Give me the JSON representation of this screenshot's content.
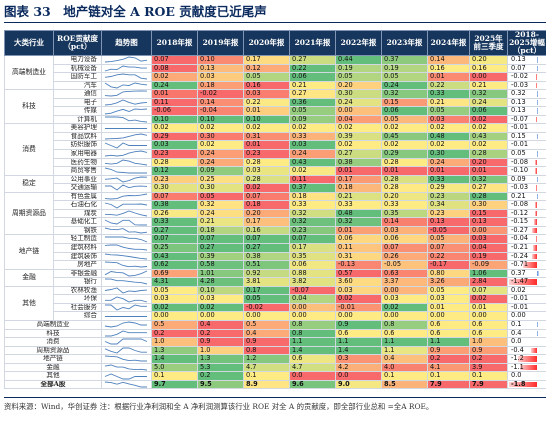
{
  "title": "图表 33　地产链对全 A ROE 贡献度已近尾声",
  "headers": [
    "大类行业",
    "ROE贡献度（pct）",
    "趋势图",
    "2018年报",
    "2019年报",
    "2020年报",
    "2021年报",
    "2022年报",
    "2023年报",
    "2024年报",
    "2025年前三季度",
    "2018-2025增幅（pct）"
  ],
  "groups": [
    {
      "name": "高端制造业",
      "rows": [
        {
          "sub": "电力设备",
          "v": [
            0.07,
            0.1,
            0.17,
            0.27,
            0.44,
            0.37,
            0.14,
            0.2
          ],
          "chg": 0.13
        },
        {
          "sub": "机械设备",
          "v": [
            0.08,
            0.13,
            0.12,
            0.22,
            0.19,
            0.19,
            0.16,
            0.16
          ],
          "chg": 0.07
        },
        {
          "sub": "国防军工",
          "v": [
            0.02,
            0.03,
            0.05,
            0.06,
            0.05,
            0.05,
            0.01,
            0.0
          ],
          "chg": -0.02
        },
        {
          "sub": "汽车",
          "v": [
            0.24,
            0.18,
            0.16,
            0.21,
            0.2,
            0.24,
            0.22,
            0.21
          ],
          "chg": -0.03
        }
      ]
    },
    {
      "name": "科技",
      "rows": [
        {
          "sub": "通信",
          "v": [
            0.01,
            -0.02,
            0.03,
            0.27,
            0.3,
            0.32,
            0.33,
            0.32
          ],
          "chg": 0.32
        },
        {
          "sub": "电子",
          "v": [
            0.11,
            0.14,
            0.22,
            0.36,
            0.24,
            0.15,
            0.21,
            0.24
          ],
          "chg": 0.13
        },
        {
          "sub": "传媒",
          "v": [
            -0.06,
            -0.04,
            0.01,
            0.05,
            0.0,
            0.06,
            0.05,
            0.06
          ],
          "chg": 0.13
        },
        {
          "sub": "计算机",
          "v": [
            0.1,
            0.1,
            0.1,
            0.09,
            0.04,
            0.05,
            0.03,
            0.02
          ],
          "chg": -0.07
        }
      ]
    },
    {
      "name": "消费",
      "rows": [
        {
          "sub": "美容护理",
          "v": [
            0.02,
            0.02,
            0.02,
            0.02,
            0.02,
            0.02,
            0.02,
            0.02
          ],
          "chg": -0.01
        },
        {
          "sub": "食品饮料",
          "v": [
            0.29,
            0.3,
            0.31,
            0.33,
            0.39,
            0.45,
            0.48,
            0.43
          ],
          "chg": 0.15
        },
        {
          "sub": "纺织服饰",
          "v": [
            0.03,
            0.02,
            0.01,
            0.03,
            0.02,
            0.02,
            0.02,
            0.02
          ],
          "chg": -0.01
        },
        {
          "sub": "家用电器",
          "v": [
            0.23,
            0.24,
            0.23,
            0.24,
            0.27,
            0.29,
            0.3,
            0.28
          ],
          "chg": 0.05
        },
        {
          "sub": "医药生物",
          "v": [
            0.28,
            0.24,
            0.28,
            0.43,
            0.38,
            0.28,
            0.24,
            0.2
          ],
          "chg": -0.08
        },
        {
          "sub": "商贸零售",
          "v": [
            0.12,
            0.09,
            0.03,
            0.02,
            0.01,
            0.01,
            0.01,
            0.01
          ],
          "chg": -0.1
        }
      ]
    },
    {
      "name": "稳定",
      "rows": [
        {
          "sub": "公用事业",
          "v": [
            0.23,
            0.25,
            0.28,
            0.11,
            0.17,
            0.28,
            0.33,
            0.32
          ],
          "chg": 0.09
        },
        {
          "sub": "交通运输",
          "v": [
            0.3,
            0.3,
            0.02,
            0.37,
            0.18,
            0.28,
            0.29,
            0.27
          ],
          "chg": -0.03
        }
      ]
    },
    {
      "name": "周期资源品",
      "rows": [
        {
          "sub": "有色金属",
          "v": [
            0.07,
            0.05,
            0.07,
            0.18,
            0.21,
            0.2,
            0.23,
            0.28
          ],
          "chg": 0.21
        },
        {
          "sub": "石油石化",
          "v": [
            0.38,
            0.32,
            0.18,
            0.33,
            0.33,
            0.33,
            0.34,
            0.3
          ],
          "chg": -0.08
        },
        {
          "sub": "煤炭",
          "v": [
            0.26,
            0.24,
            0.2,
            0.32,
            0.48,
            0.35,
            0.23,
            0.15
          ],
          "chg": -0.12
        },
        {
          "sub": "基础化工",
          "v": [
            0.33,
            0.21,
            0.17,
            0.32,
            0.32,
            0.14,
            0.13,
            0.13
          ],
          "chg": -0.15
        },
        {
          "sub": "钢铁",
          "v": [
            0.27,
            0.18,
            0.16,
            0.23,
            0.01,
            0.03,
            -0.05,
            0.0
          ],
          "chg": -0.27
        }
      ]
    },
    {
      "name": "地产链",
      "rows": [
        {
          "sub": "轻工制造",
          "v": [
            0.07,
            0.07,
            0.07,
            0.07,
            0.06,
            0.06,
            0.05,
            0.03
          ],
          "chg": -0.04
        },
        {
          "sub": "建筑材料",
          "v": [
            0.25,
            0.27,
            0.27,
            0.17,
            0.11,
            0.07,
            0.07,
            0.04
          ],
          "chg": -0.21
        },
        {
          "sub": "建筑装饰",
          "v": [
            0.43,
            0.39,
            0.38,
            0.35,
            0.31,
            0.26,
            0.22,
            0.19
          ],
          "chg": -0.24
        },
        {
          "sub": "房地产",
          "v": [
            0.62,
            0.58,
            0.51,
            0.06,
            -0.13,
            -0.05,
            -0.17,
            -0.09
          ],
          "chg": -0.71
        }
      ]
    },
    {
      "name": "金融",
      "rows": [
        {
          "sub": "非银金融",
          "v": [
            0.69,
            1.01,
            0.92,
            0.88,
            0.57,
            0.63,
            0.8,
            1.06
          ],
          "chg": 0.37
        },
        {
          "sub": "银行",
          "v": [
            4.31,
            4.28,
            3.81,
            3.82,
            3.6,
            3.37,
            3.26,
            2.84
          ],
          "chg": -1.47
        }
      ]
    },
    {
      "name": "其他",
      "rows": [
        {
          "sub": "农林牧渔",
          "v": [
            0.05,
            0.1,
            0.17,
            -0.07,
            0.03,
            0.0,
            0.05,
            0.07
          ],
          "chg": 0.02
        },
        {
          "sub": "环保",
          "v": [
            0.03,
            0.03,
            0.05,
            0.04,
            0.02,
            0.03,
            0.03,
            0.02
          ],
          "chg": -0.01
        },
        {
          "sub": "社会服务",
          "v": [
            0.02,
            0.02,
            -0.02,
            0.0,
            -0.01,
            0.02,
            0.01,
            0.01
          ],
          "chg": -0.01
        },
        {
          "sub": "综合",
          "v": [
            0.0,
            0.0,
            0.0,
            0.0,
            0.0,
            0.0,
            0.0,
            0.0
          ],
          "chg": 0.0
        }
      ]
    }
  ],
  "summary": [
    {
      "label": "高端制造业",
      "v": [
        0.5,
        0.4,
        0.5,
        0.8,
        0.9,
        0.8,
        0.6,
        0.6
      ],
      "chg": 0.1
    },
    {
      "label": "科技",
      "v": [
        0.2,
        0.2,
        0.4,
        0.8,
        0.6,
        0.6,
        0.6,
        0.6
      ],
      "chg": 0.4
    },
    {
      "label": "消费",
      "v": [
        1.0,
        0.9,
        0.9,
        1.1,
        1.1,
        1.1,
        1.1,
        1.0
      ],
      "chg": 0.0
    },
    {
      "label": "周期资源品",
      "v": [
        1.3,
        1.0,
        0.8,
        1.4,
        1.4,
        1.1,
        0.9,
        0.9
      ],
      "chg": -0.4
    },
    {
      "label": "地产链",
      "v": [
        1.4,
        1.3,
        1.2,
        0.6,
        0.3,
        0.4,
        0.2,
        0.2
      ],
      "chg": -1.2
    },
    {
      "label": "金融",
      "v": [
        5.0,
        5.3,
        4.7,
        4.7,
        4.2,
        4.0,
        4.1,
        3.9
      ],
      "chg": -1.1
    },
    {
      "label": "其他",
      "v": [
        0.1,
        0.2,
        0.1,
        0.0,
        0.0,
        0.1,
        0.1,
        0.1
      ],
      "chg": 0.0
    },
    {
      "label": "全部A股",
      "v": [
        9.7,
        9.5,
        8.9,
        9.6,
        9.0,
        8.5,
        7.9,
        7.9
      ],
      "chg": -1.8,
      "total": true
    }
  ],
  "source": "资料来源：Wind，华创证券 注：根据行业净利润和全 A 净利润测算该行业 ROE 对全 A 的贡献度，即全部行业总和 =全A ROE。",
  "colors": {
    "header_bg": "#17365d",
    "title": "#0a2a5e",
    "green": "#63be7b",
    "yellow": "#ffeb84",
    "red": "#f8696b",
    "bar_pos": "#5b8bd9",
    "bar_neg": "#ff2b2b",
    "sparkline": "#4f81bd"
  }
}
